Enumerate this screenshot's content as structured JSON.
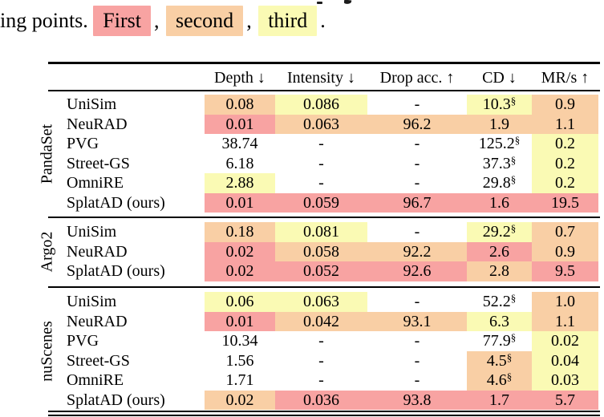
{
  "colors": {
    "first": "#F8A3A2",
    "second": "#F9CFA5",
    "third": "#FAFAB4"
  },
  "caption": {
    "prefix": "ing points.",
    "separator": ",",
    "terminator": ".",
    "legend": [
      {
        "label": "First",
        "rank": "first"
      },
      {
        "label": "second",
        "rank": "second"
      },
      {
        "label": "third",
        "rank": "third"
      }
    ]
  },
  "table": {
    "columns": [
      "Depth ↓",
      "Intensity ↓",
      "Drop acc. ↑",
      "CD ↓",
      "MR/s ↑"
    ],
    "sections": [
      {
        "dataset": "PandaSet",
        "rows": [
          {
            "method": "UniSim",
            "cells": [
              {
                "v": "0.08",
                "r": "second"
              },
              {
                "v": "0.086",
                "r": "third"
              },
              {
                "v": "-",
                "r": "none"
              },
              {
                "v": "10.3",
                "sup": "§",
                "r": "third"
              },
              {
                "v": "0.9",
                "r": "second"
              }
            ]
          },
          {
            "method": "NeuRAD",
            "cells": [
              {
                "v": "0.01",
                "r": "first"
              },
              {
                "v": "0.063",
                "r": "second"
              },
              {
                "v": "96.2",
                "r": "second"
              },
              {
                "v": "1.9",
                "r": "second"
              },
              {
                "v": "1.1",
                "r": "second"
              }
            ]
          },
          {
            "method": "PVG",
            "cells": [
              {
                "v": "38.74",
                "r": "none"
              },
              {
                "v": "-",
                "r": "none"
              },
              {
                "v": "-",
                "r": "none"
              },
              {
                "v": "125.2",
                "sup": "§",
                "r": "none"
              },
              {
                "v": "0.2",
                "r": "third"
              }
            ]
          },
          {
            "method": "Street-GS",
            "cells": [
              {
                "v": "6.18",
                "r": "none"
              },
              {
                "v": "-",
                "r": "none"
              },
              {
                "v": "-",
                "r": "none"
              },
              {
                "v": "37.3",
                "sup": "§",
                "r": "none"
              },
              {
                "v": "0.2",
                "r": "third"
              }
            ]
          },
          {
            "method": "OmniRE",
            "cells": [
              {
                "v": "2.88",
                "r": "third"
              },
              {
                "v": "-",
                "r": "none"
              },
              {
                "v": "-",
                "r": "none"
              },
              {
                "v": "29.8",
                "sup": "§",
                "r": "none"
              },
              {
                "v": "0.2",
                "r": "third"
              }
            ]
          },
          {
            "method": "SplatAD (ours)",
            "cells": [
              {
                "v": "0.01",
                "r": "first"
              },
              {
                "v": "0.059",
                "r": "first"
              },
              {
                "v": "96.7",
                "r": "first"
              },
              {
                "v": "1.6",
                "r": "first"
              },
              {
                "v": "19.5",
                "r": "first"
              }
            ]
          }
        ]
      },
      {
        "dataset": "Argo2",
        "rows": [
          {
            "method": "UniSim",
            "cells": [
              {
                "v": "0.18",
                "r": "second"
              },
              {
                "v": "0.081",
                "r": "third"
              },
              {
                "v": "-",
                "r": "none"
              },
              {
                "v": "29.2",
                "sup": "§",
                "r": "third"
              },
              {
                "v": "0.7",
                "r": "second"
              }
            ]
          },
          {
            "method": "NeuRAD",
            "cells": [
              {
                "v": "0.02",
                "r": "first"
              },
              {
                "v": "0.058",
                "r": "second"
              },
              {
                "v": "92.2",
                "r": "second"
              },
              {
                "v": "2.6",
                "r": "first"
              },
              {
                "v": "0.9",
                "r": "second"
              }
            ]
          },
          {
            "method": "SplatAD (ours)",
            "cells": [
              {
                "v": "0.02",
                "r": "first"
              },
              {
                "v": "0.052",
                "r": "first"
              },
              {
                "v": "92.6",
                "r": "first"
              },
              {
                "v": "2.8",
                "r": "second"
              },
              {
                "v": "9.5",
                "r": "first"
              }
            ]
          }
        ]
      },
      {
        "dataset": "nuScenes",
        "rows": [
          {
            "method": "UniSim",
            "cells": [
              {
                "v": "0.06",
                "r": "third"
              },
              {
                "v": "0.063",
                "r": "third"
              },
              {
                "v": "-",
                "r": "none"
              },
              {
                "v": "52.2",
                "sup": "§",
                "r": "none"
              },
              {
                "v": "1.0",
                "r": "second"
              }
            ]
          },
          {
            "method": "NeuRAD",
            "cells": [
              {
                "v": "0.01",
                "r": "first"
              },
              {
                "v": "0.042",
                "r": "second"
              },
              {
                "v": "93.1",
                "r": "second"
              },
              {
                "v": "6.3",
                "r": "third"
              },
              {
                "v": "1.1",
                "r": "second"
              }
            ]
          },
          {
            "method": "PVG",
            "cells": [
              {
                "v": "10.34",
                "r": "none"
              },
              {
                "v": "-",
                "r": "none"
              },
              {
                "v": "-",
                "r": "none"
              },
              {
                "v": "77.9",
                "sup": "§",
                "r": "none"
              },
              {
                "v": "0.02",
                "r": "third"
              }
            ]
          },
          {
            "method": "Street-GS",
            "cells": [
              {
                "v": "1.56",
                "r": "none"
              },
              {
                "v": "-",
                "r": "none"
              },
              {
                "v": "-",
                "r": "none"
              },
              {
                "v": "4.5",
                "sup": "§",
                "r": "second"
              },
              {
                "v": "0.04",
                "r": "third"
              }
            ]
          },
          {
            "method": "OmniRE",
            "cells": [
              {
                "v": "1.71",
                "r": "none"
              },
              {
                "v": "-",
                "r": "none"
              },
              {
                "v": "-",
                "r": "none"
              },
              {
                "v": "4.6",
                "sup": "§",
                "r": "second"
              },
              {
                "v": "0.03",
                "r": "third"
              }
            ]
          },
          {
            "method": "SplatAD (ours)",
            "cells": [
              {
                "v": "0.02",
                "r": "second"
              },
              {
                "v": "0.036",
                "r": "first"
              },
              {
                "v": "93.8",
                "r": "first"
              },
              {
                "v": "1.7",
                "r": "first"
              },
              {
                "v": "5.7",
                "r": "first"
              }
            ]
          }
        ]
      }
    ]
  }
}
